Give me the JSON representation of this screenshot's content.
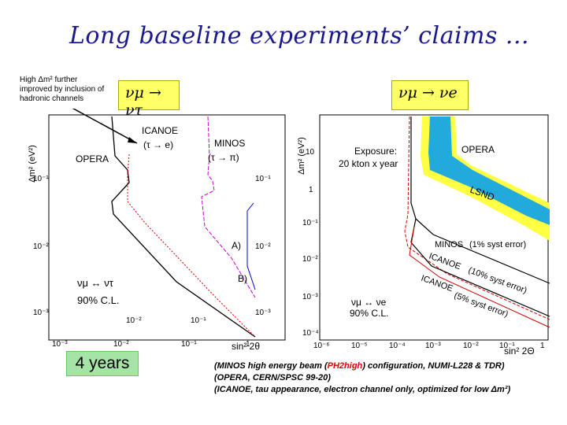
{
  "slide": {
    "title": "Long baseline experiments’ claims ...",
    "note_lines": [
      "High Δm² further",
      "improved by inclusion of",
      "hadronic channels"
    ],
    "duration_badge": "4 years",
    "footnotes": {
      "line1_a": "(MINOS high energy beam (",
      "line1_highlight": "PH2high",
      "line1_b": ") configuration, NUMI-L228 & TDR)",
      "line2": "(OPERA, CERN/SPSC 99-20)",
      "line3": "(ICANOE, tau appearance, electron channel only, optimized for low Δm²)"
    }
  },
  "left_plot": {
    "channel": "νμ → ντ",
    "y_axis_label": "Δm² (eV²)",
    "x_axis_label": "sin² 2θ",
    "labels": {
      "icanoe": "ICANOE",
      "icanoe_channel": "(τ → e)",
      "minos": "MINOS",
      "minos_channel": "(τ → π)",
      "opera": "OPERA",
      "a": "A)",
      "b": "B)",
      "osc": "νμ ↔ ντ",
      "cl": "90% C.L."
    },
    "y_ticks": [
      "10⁻¹",
      "10⁻²",
      "10⁻³"
    ],
    "y_ticks_inner": [
      "10⁻¹",
      "10⁻²",
      "10⁻³"
    ],
    "x_ticks": [
      "10⁻³",
      "10⁻²",
      "10⁻¹",
      "1"
    ],
    "x_ticks_inner": [
      "10⁻²",
      "10⁻¹"
    ]
  },
  "right_plot": {
    "channel": "νμ → νe",
    "y_axis_label": "Δm² (eV²)",
    "x_axis_label": "sin² 2Θ",
    "labels": {
      "exposure_1": "Exposure:",
      "exposure_2": "20 kton x year",
      "opera": "OPERA",
      "lsnd": "LSND",
      "minos": "MINOS",
      "minos_note": "(1% syst error)",
      "icanoe_10": "ICANOE",
      "icanoe_10_note": "(10% syst error)",
      "icanoe_5": "ICANOE",
      "icanoe_5_note": "(5% syst error)",
      "osc": "νμ ↔ νe",
      "cl": "90% C.L."
    },
    "y_ticks": [
      "10",
      "1",
      "10⁻¹",
      "10⁻²",
      "10⁻³",
      "10⁻⁴"
    ],
    "x_ticks": [
      "10⁻⁶",
      "10⁻⁵",
      "10⁻⁴",
      "10⁻³",
      "10⁻²",
      "10⁻¹",
      "1"
    ]
  }
}
